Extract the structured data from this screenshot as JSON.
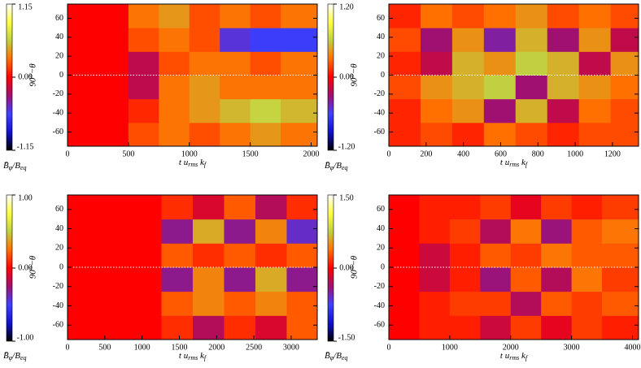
{
  "chart_data": [
    {
      "type": "heatmap",
      "ylabel": "90°−θ",
      "xlabel": [
        "t u",
        "rms",
        " k",
        "f"
      ],
      "zlabel": [
        "B̄",
        "φ",
        "/B",
        "eq"
      ],
      "xlim": [
        0,
        2050
      ],
      "xticks": [
        0,
        500,
        1000,
        1500,
        2000
      ],
      "ylim": [
        -75,
        75
      ],
      "yticks": [
        -60,
        -40,
        -20,
        0,
        20,
        40,
        60
      ],
      "zlim": [
        -1.15,
        1.15
      ],
      "zticks": [
        -1.15,
        {
          "value": 0,
          "label": "0.00"
        },
        1.15
      ],
      "colormap": [
        "#000000",
        "#1010d0",
        "#4040ff",
        "#a01070",
        "#ff0000",
        "#ff7000",
        "#c0d040",
        "#ffff40",
        "#ffffff"
      ],
      "xbins": [
        0,
        250,
        500,
        750,
        1000,
        1250,
        1500,
        1750,
        2050
      ],
      "ybins": [
        -75,
        -50,
        -25,
        0,
        25,
        50,
        75
      ],
      "z": [
        [
          0,
          0,
          0.2,
          0.3,
          0.2,
          0.3,
          0.4,
          0.3
        ],
        [
          0,
          0,
          0.1,
          0.3,
          0.4,
          0.5,
          0.6,
          0.5
        ],
        [
          0,
          0,
          -0.2,
          0.3,
          0.4,
          0.3,
          0.3,
          0.3
        ],
        [
          0,
          0,
          -0.2,
          0.2,
          0.3,
          0.3,
          0.2,
          0.3
        ],
        [
          0,
          0,
          0.2,
          0.3,
          0.2,
          -0.5,
          -0.6,
          -0.6
        ],
        [
          0,
          0,
          0.3,
          0.4,
          0.2,
          0.3,
          0.2,
          0.3
        ]
      ]
    },
    {
      "type": "heatmap",
      "ylabel": "90°−θ",
      "xlabel": [
        "t u",
        "rms",
        " k",
        "f"
      ],
      "zlabel": [
        "B̄",
        "φ",
        "/B",
        "eq"
      ],
      "xlim": [
        0,
        1340
      ],
      "xticks": [
        0,
        200,
        400,
        600,
        800,
        1000,
        1200
      ],
      "ylim": [
        -75,
        75
      ],
      "yticks": [
        -60,
        -40,
        -20,
        0,
        20,
        40,
        60
      ],
      "zlim": [
        -1.2,
        1.2
      ],
      "zticks": [
        {
          "value": -1.2,
          "label": "-1.20"
        },
        {
          "value": 0,
          "label": "0.00"
        },
        {
          "value": 1.2,
          "label": "1.20"
        }
      ],
      "colormap": [
        "#000000",
        "#1010d0",
        "#4040ff",
        "#a01070",
        "#ff0000",
        "#ff7000",
        "#c0d040",
        "#ffff40",
        "#ffffff"
      ],
      "xbins": [
        0,
        170,
        340,
        510,
        680,
        850,
        1020,
        1190,
        1340
      ],
      "ybins": [
        -75,
        -50,
        -25,
        0,
        25,
        50,
        75
      ],
      "z": [
        [
          0.1,
          0.2,
          0.1,
          0.3,
          0.2,
          0.1,
          0.2,
          0.2
        ],
        [
          0.1,
          0.3,
          0.4,
          -0.3,
          0.5,
          -0.2,
          0.3,
          0.2
        ],
        [
          0.2,
          0.4,
          0.5,
          0.6,
          -0.3,
          0.5,
          0.4,
          0.3
        ],
        [
          0.1,
          -0.2,
          0.5,
          0.4,
          0.6,
          0.5,
          -0.2,
          0.4
        ],
        [
          0.2,
          -0.3,
          0.4,
          -0.4,
          0.5,
          -0.3,
          0.4,
          -0.2
        ],
        [
          0.1,
          0.3,
          0.2,
          0.3,
          0.4,
          0.2,
          0.3,
          0.2
        ]
      ]
    },
    {
      "type": "heatmap",
      "ylabel": "90°−θ",
      "xlabel": [
        "t u",
        "rms",
        " k",
        "f"
      ],
      "zlabel": [
        "B̄",
        "φ",
        "/B",
        "eq"
      ],
      "xlim": [
        0,
        3350
      ],
      "xticks": [
        0,
        500,
        1000,
        1500,
        2000,
        2500,
        3000
      ],
      "ylim": [
        -75,
        75
      ],
      "yticks": [
        -60,
        -40,
        -20,
        0,
        20,
        40,
        60
      ],
      "zlim": [
        -1,
        1
      ],
      "zticks": [
        {
          "value": -1,
          "label": "-1.00"
        },
        {
          "value": 0,
          "label": "0.00"
        },
        {
          "value": 1,
          "label": "1.00"
        }
      ],
      "colormap": [
        "#000000",
        "#1010d0",
        "#4040ff",
        "#a01070",
        "#ff0000",
        "#ff7000",
        "#c0d040",
        "#ffff40",
        "#ffffff"
      ],
      "xbins": [
        0,
        420,
        840,
        1260,
        1680,
        2100,
        2520,
        2940,
        3350
      ],
      "ybins": [
        -75,
        -50,
        -25,
        0,
        25,
        50,
        75
      ],
      "z": [
        [
          0,
          0,
          0,
          0.1,
          -0.2,
          0.1,
          -0.1,
          0.2
        ],
        [
          0,
          0,
          0,
          0.2,
          0.3,
          0.2,
          0.3,
          0.2
        ],
        [
          0,
          0,
          0,
          -0.3,
          0.3,
          -0.3,
          0.4,
          -0.3
        ],
        [
          0,
          0,
          0,
          0.2,
          0.1,
          0.2,
          0.1,
          0.2
        ],
        [
          0,
          0,
          0,
          -0.3,
          0.4,
          -0.3,
          0.3,
          -0.4
        ],
        [
          0,
          0,
          0,
          0.1,
          -0.1,
          0.2,
          -0.2,
          0.1
        ]
      ]
    },
    {
      "type": "heatmap",
      "ylabel": "90°−θ",
      "xlabel": [
        "t u",
        "rms",
        " k",
        "f"
      ],
      "zlabel": [
        "B̄",
        "φ",
        "/B",
        "eq"
      ],
      "xlim": [
        0,
        4100
      ],
      "xticks": [
        0,
        1000,
        2000,
        3000,
        4000
      ],
      "ylim": [
        -75,
        75
      ],
      "yticks": [
        -60,
        -40,
        -20,
        0,
        20,
        40,
        60
      ],
      "zlim": [
        -1.5,
        1.5
      ],
      "zticks": [
        {
          "value": -1.5,
          "label": "-1.50"
        },
        {
          "value": 0,
          "label": "0.00"
        },
        {
          "value": 1.5,
          "label": "1.50"
        }
      ],
      "colormap": [
        "#000000",
        "#1010d0",
        "#4040ff",
        "#a01070",
        "#ff0000",
        "#ff7000",
        "#c0d040",
        "#ffff40",
        "#ffffff"
      ],
      "xbins": [
        0,
        500,
        1000,
        1500,
        2000,
        2500,
        3000,
        3500,
        4100
      ],
      "ybins": [
        -75,
        -50,
        -25,
        0,
        25,
        50,
        75
      ],
      "z": [
        [
          0,
          0.1,
          0.1,
          -0.2,
          0.2,
          -0.1,
          0.2,
          0.1
        ],
        [
          0,
          0.1,
          0.2,
          0.2,
          -0.3,
          0.3,
          0.2,
          0.3
        ],
        [
          0,
          -0.2,
          0.1,
          -0.4,
          0.3,
          -0.3,
          0.4,
          0.2
        ],
        [
          0,
          -0.2,
          0.1,
          0.3,
          0.2,
          0.4,
          0.3,
          0.3
        ],
        [
          0,
          0.1,
          0.2,
          -0.3,
          0.4,
          -0.4,
          0.3,
          0.4
        ],
        [
          0,
          0.1,
          0.1,
          0.2,
          -0.1,
          0.2,
          0.1,
          0.2
        ]
      ]
    }
  ]
}
